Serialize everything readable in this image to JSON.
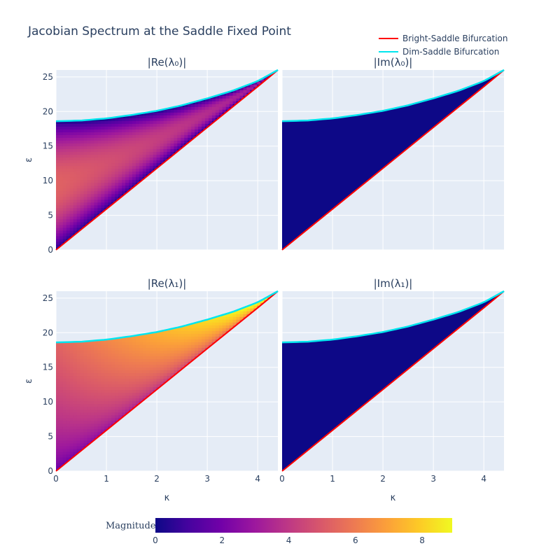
{
  "chart_data": {
    "type": "heatmap",
    "title": "Jacobian Spectrum at the Saddle Fixed Point",
    "panels": [
      {
        "title": "|Re(λ₀)|",
        "colormode": "re0"
      },
      {
        "title": "|Im(λ₀)|",
        "colormode": "zero"
      },
      {
        "title": "|Re(λ₁)|",
        "colormode": "re1"
      },
      {
        "title": "|Im(λ₁)|",
        "colormode": "zero"
      }
    ],
    "xlabel": "κ",
    "ylabel": "ε",
    "xlim": [
      0,
      4.4
    ],
    "ylim": [
      0,
      26
    ],
    "x_ticks": [
      0,
      1,
      2,
      3,
      4
    ],
    "y_ticks": [
      0,
      5,
      10,
      15,
      20,
      25
    ],
    "legend": {
      "placement": "top-right",
      "entries": [
        {
          "name": "Bright-Saddle Bifurcation",
          "color": "#ff0000"
        },
        {
          "name": "Dim-Saddle Bifurcation",
          "color": "#00e5ee"
        }
      ]
    },
    "curves": {
      "bright_saddle": {
        "x": [
          0,
          1,
          2,
          3,
          4,
          4.4
        ],
        "y": [
          0,
          5.9,
          11.8,
          17.7,
          23.6,
          26
        ]
      },
      "dim_saddle": {
        "x": [
          0,
          0.5,
          1,
          1.5,
          2,
          2.5,
          3,
          3.5,
          4,
          4.4
        ],
        "y": [
          18.6,
          18.7,
          19.0,
          19.5,
          20.1,
          20.9,
          21.9,
          23.0,
          24.4,
          26
        ]
      }
    },
    "colorbar": {
      "title": "Magnitude",
      "range": [
        0,
        8.9
      ],
      "ticks": [
        0,
        2,
        4,
        6,
        8
      ],
      "colorscale": [
        "#0d0887",
        "#46039f",
        "#7201a8",
        "#9c179e",
        "#bd3786",
        "#d8576b",
        "#ed7953",
        "#fb9f3a",
        "#fdca26",
        "#f0f921"
      ]
    }
  }
}
